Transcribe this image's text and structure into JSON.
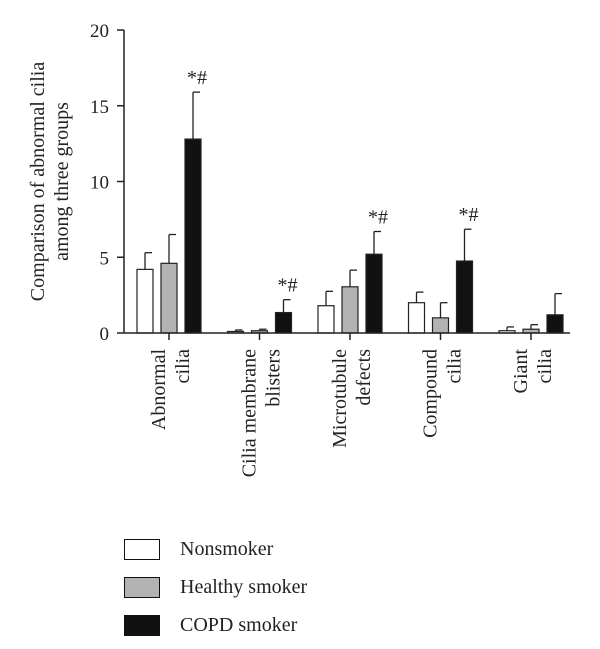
{
  "chart_data": {
    "type": "bar",
    "ylabel_lines": [
      "Comparison of abnormal cilia",
      "among three groups"
    ],
    "ylim": [
      0,
      20
    ],
    "yticks": [
      0,
      5,
      10,
      15,
      20
    ],
    "grid": false,
    "legend_placement": "bottom-left",
    "categories": [
      {
        "lines": [
          "Abnormal",
          "cilia"
        ]
      },
      {
        "lines": [
          "Cilia membrane",
          "blisters"
        ]
      },
      {
        "lines": [
          "Microtubule",
          "defects"
        ]
      },
      {
        "lines": [
          "Compound",
          "cilia"
        ]
      },
      {
        "lines": [
          "Giant",
          "cilia"
        ]
      }
    ],
    "series": [
      {
        "name": "Nonsmoker",
        "color": "#ffffff",
        "values": [
          4.2,
          0.1,
          1.8,
          2.0,
          0.15
        ],
        "errors": [
          1.1,
          0.1,
          0.95,
          0.7,
          0.25
        ]
      },
      {
        "name": "Healthy smoker",
        "color": "#b3b3b3",
        "values": [
          4.6,
          0.15,
          3.05,
          1.0,
          0.25
        ],
        "errors": [
          1.9,
          0.1,
          1.1,
          1.0,
          0.3
        ]
      },
      {
        "name": "COPD smoker",
        "color": "#111111",
        "values": [
          12.8,
          1.35,
          5.2,
          4.75,
          1.2
        ],
        "errors": [
          3.1,
          0.85,
          1.5,
          2.1,
          1.4
        ]
      }
    ],
    "annotations": [
      {
        "category": 0,
        "series": 2,
        "text": "*#"
      },
      {
        "category": 1,
        "series": 2,
        "text": "*#"
      },
      {
        "category": 2,
        "series": 2,
        "text": "*#"
      },
      {
        "category": 3,
        "series": 2,
        "text": "*#"
      }
    ]
  }
}
